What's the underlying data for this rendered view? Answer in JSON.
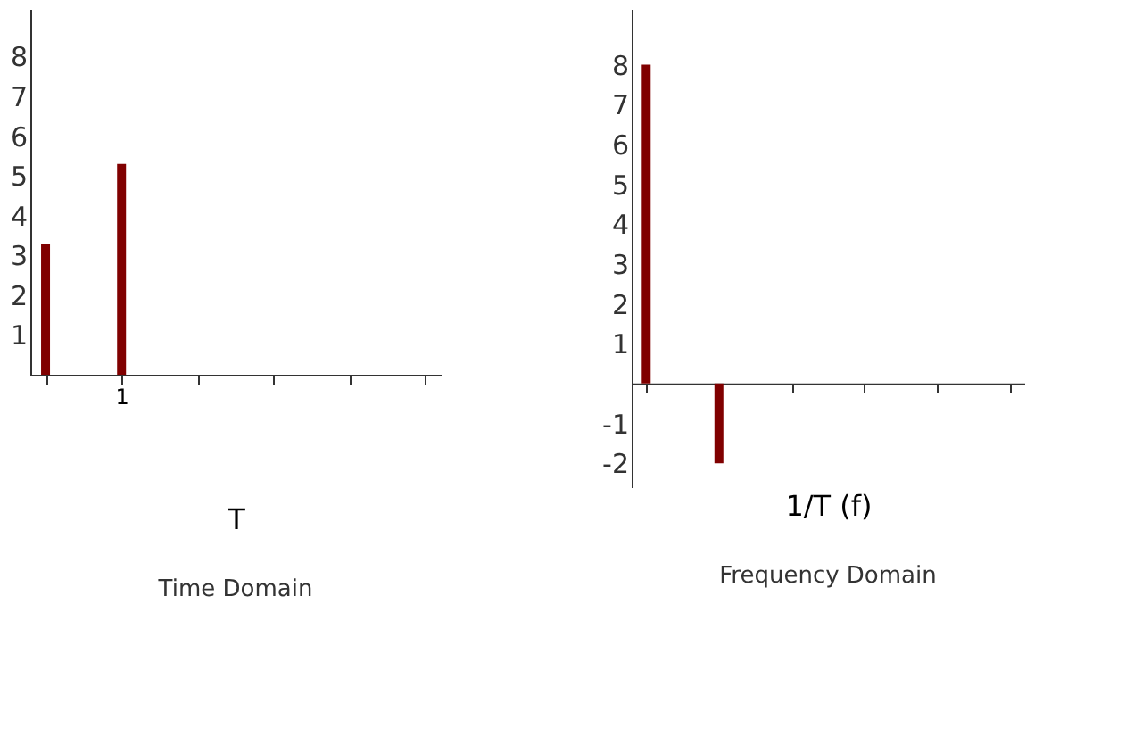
{
  "chart_data": [
    {
      "type": "bar",
      "title": "Time Domain",
      "xlabel": "T",
      "categories": [
        null,
        "1",
        null,
        null,
        null,
        null
      ],
      "values": [
        3.3,
        5.3,
        null,
        null,
        null,
        null
      ],
      "color": "#800000",
      "ylim": [
        0,
        9.2
      ],
      "yticks": [
        1,
        2,
        3,
        4,
        5,
        6,
        7,
        8
      ],
      "grid": false
    },
    {
      "type": "bar",
      "title": "Frequency Domain",
      "xlabel": "1/T  (f)",
      "categories": [
        null,
        null,
        null,
        null,
        null,
        null
      ],
      "values": [
        8,
        -2,
        null,
        null,
        null,
        null
      ],
      "color": "#800000",
      "ylim": [
        -2.6,
        9.4
      ],
      "yticks": [
        -2,
        -1,
        1,
        2,
        3,
        4,
        5,
        6,
        7,
        8
      ],
      "grid": false,
      "tick_labels": "y"
    }
  ]
}
